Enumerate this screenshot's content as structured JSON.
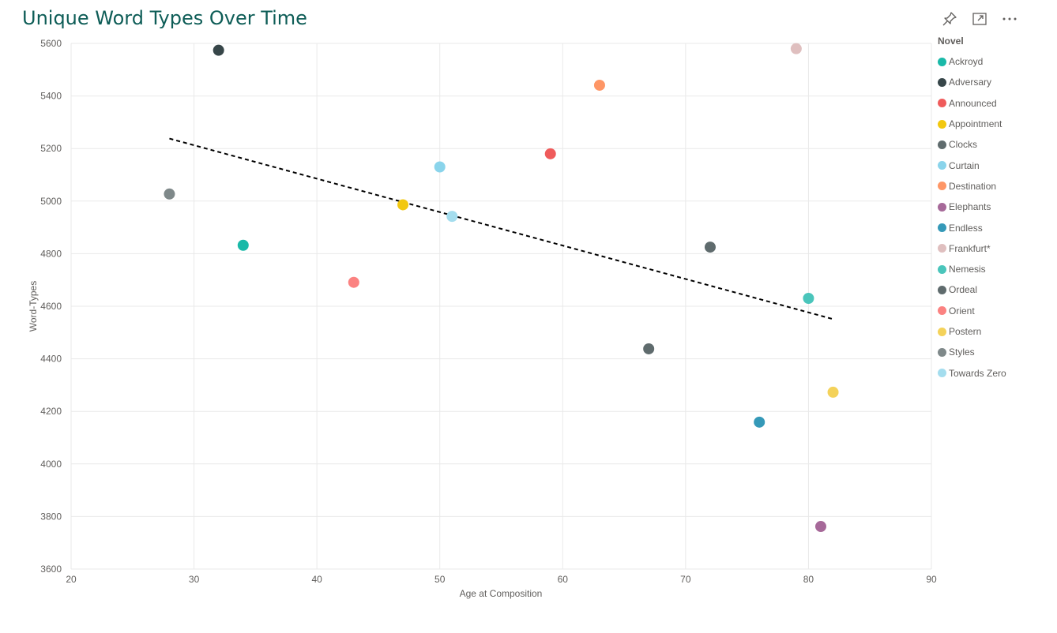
{
  "header": {
    "title": "Unique Word Types Over Time",
    "icons": [
      "pin-icon",
      "focus-mode-icon",
      "more-options-icon"
    ]
  },
  "chart_data": {
    "type": "scatter",
    "title": "Unique Word Types Over Time",
    "xlabel": "Age at Composition",
    "ylabel": "Word-Types",
    "xlim": [
      20,
      90
    ],
    "ylim": [
      3600,
      5600
    ],
    "xticks": [
      20,
      30,
      40,
      50,
      60,
      70,
      80,
      90
    ],
    "yticks": [
      3600,
      3800,
      4000,
      4200,
      4400,
      4600,
      4800,
      5000,
      5200,
      5400,
      5600
    ],
    "grid": true,
    "legend": {
      "title": "Novel",
      "position": "right"
    },
    "series": [
      {
        "name": "Ackroyd",
        "color": "#1ab9a8",
        "points": [
          {
            "x": 34,
            "y": 4832
          }
        ]
      },
      {
        "name": "Adversary",
        "color": "#374649",
        "points": [
          {
            "x": 32,
            "y": 5574
          }
        ]
      },
      {
        "name": "Announced",
        "color": "#ef5b5b",
        "points": [
          {
            "x": 59,
            "y": 5180
          }
        ]
      },
      {
        "name": "Appointment",
        "color": "#f2c80f",
        "points": [
          {
            "x": 47,
            "y": 4986
          }
        ]
      },
      {
        "name": "Clocks",
        "color": "#5f6b6d",
        "points": [
          {
            "x": 67,
            "y": 4438
          }
        ]
      },
      {
        "name": "Curtain",
        "color": "#8ad4eb",
        "points": [
          {
            "x": 50,
            "y": 5130
          }
        ]
      },
      {
        "name": "Destination",
        "color": "#fe9666",
        "points": [
          {
            "x": 63,
            "y": 5441
          }
        ]
      },
      {
        "name": "Elephants",
        "color": "#a66999",
        "points": [
          {
            "x": 81,
            "y": 3762
          }
        ]
      },
      {
        "name": "Endless",
        "color": "#3599b8",
        "points": [
          {
            "x": 76,
            "y": 4159
          }
        ]
      },
      {
        "name": "Frankfurt*",
        "color": "#dfbfbf",
        "points": [
          {
            "x": 79,
            "y": 5580
          }
        ]
      },
      {
        "name": "Nemesis",
        "color": "#4ac5bb",
        "points": [
          {
            "x": 80,
            "y": 4630
          }
        ]
      },
      {
        "name": "Ordeal",
        "color": "#5f6b6d",
        "points": [
          {
            "x": 72,
            "y": 4825
          }
        ]
      },
      {
        "name": "Orient",
        "color": "#fb8281",
        "points": [
          {
            "x": 43,
            "y": 4691
          }
        ]
      },
      {
        "name": "Postern",
        "color": "#f4d25a",
        "points": [
          {
            "x": 82,
            "y": 4273
          }
        ]
      },
      {
        "name": "Styles",
        "color": "#7f898a",
        "points": [
          {
            "x": 28,
            "y": 5027
          }
        ]
      },
      {
        "name": "Towards Zero",
        "color": "#a4ddee",
        "points": [
          {
            "x": 51,
            "y": 4942
          }
        ]
      }
    ],
    "trend_line": {
      "style": "dashed",
      "color": "#000000",
      "from": {
        "x": 28,
        "y": 5238
      },
      "to": {
        "x": 82,
        "y": 4551
      }
    }
  }
}
